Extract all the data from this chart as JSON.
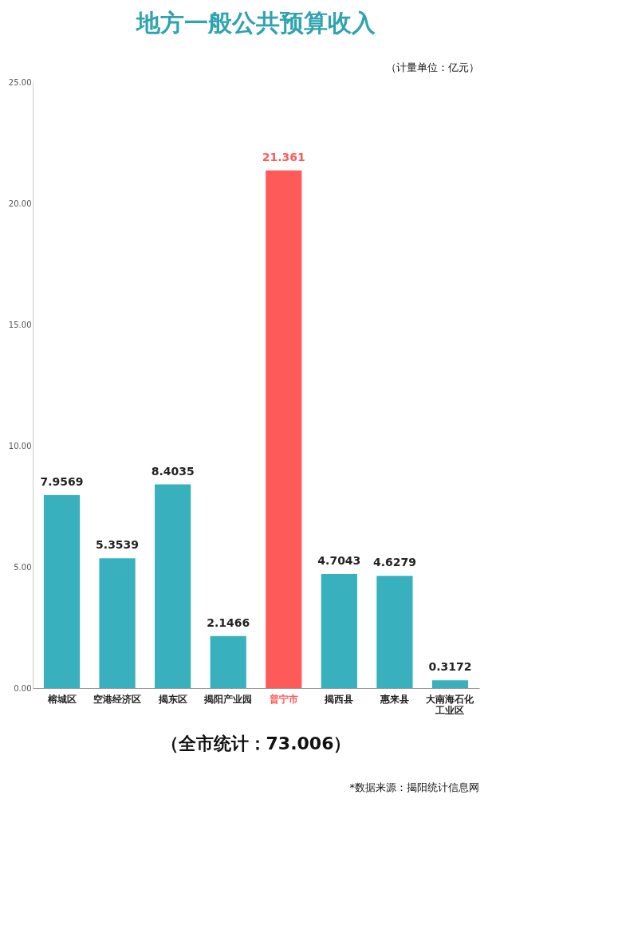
{
  "chart_data": {
    "type": "bar",
    "title": "地方一般公共预算收入",
    "categories": [
      "榕城区",
      "空港经济区",
      "揭东区",
      "揭阳产业园",
      "普宁市",
      "揭西县",
      "惠来县",
      "大南海石化工业区"
    ],
    "values": [
      7.9569,
      5.3539,
      8.4035,
      2.1466,
      21.361,
      4.7043,
      4.6279,
      0.3172
    ],
    "colors": [
      "#38b0be",
      "#38b0be",
      "#38b0be",
      "#38b0be",
      "#ff5a5a",
      "#38b0be",
      "#38b0be",
      "#38b0be"
    ],
    "ylim": [
      0,
      25
    ],
    "yticks": [
      {
        "value": 0,
        "label": "0.00"
      },
      {
        "value": 5,
        "label": "5.00"
      },
      {
        "value": 10,
        "label": "10.00"
      },
      {
        "value": 15,
        "label": "15.00"
      },
      {
        "value": 20,
        "label": "20.00"
      },
      {
        "value": 25,
        "label": "25.00"
      }
    ],
    "grid": false,
    "data_labels": true,
    "annotations": [
      "（计量单位：亿元）",
      "（全市统计：73.006）",
      "*数据来源：揭阳统计信息网"
    ]
  }
}
